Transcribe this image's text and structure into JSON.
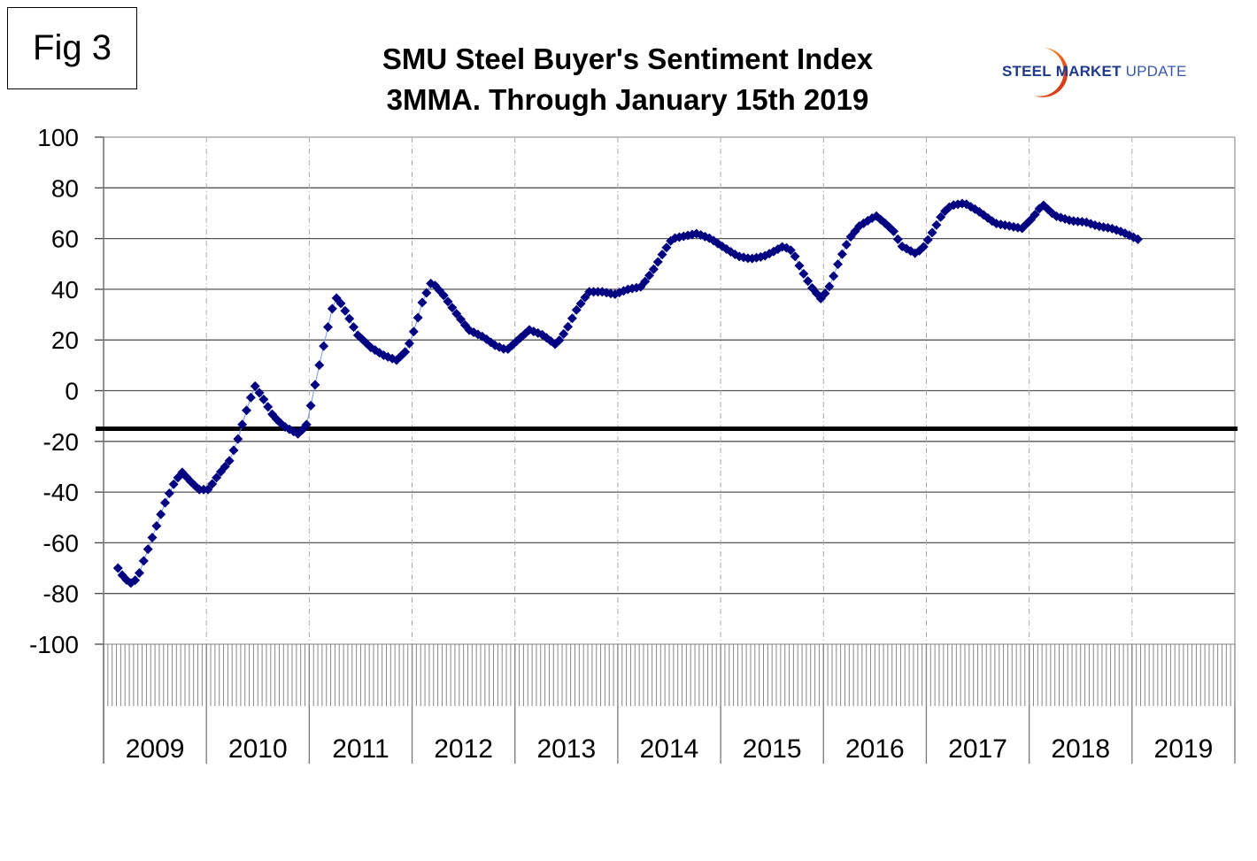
{
  "figure_label": "Fig 3",
  "logo": {
    "word1": "STEEL",
    "word2": "MARKET",
    "word3": "UPDATE"
  },
  "chart_data": {
    "type": "scatter",
    "title": "SMU Steel Buyer's Sentiment Index",
    "subtitle": "3MMA. Through January 15th 2019",
    "xlabel": "",
    "ylabel": "",
    "ylim": [
      -100,
      100
    ],
    "xlim": [
      2009,
      2020
    ],
    "yticks": [
      100,
      80,
      60,
      40,
      20,
      0,
      -20,
      -40,
      -60,
      -80,
      -100
    ],
    "categories": [
      "2009",
      "2010",
      "2011",
      "2012",
      "2013",
      "2014",
      "2015",
      "2016",
      "2017",
      "2018",
      "2019"
    ],
    "grid": true,
    "legend": "none",
    "reference_line": {
      "value": -15,
      "color": "#000000"
    },
    "series": [
      {
        "name": "Buyer's Sentiment Index 3MMA",
        "marker": "diamond",
        "color": "#000080",
        "line_color": "#6f9cf0",
        "sampling_per_year": 24,
        "anchors": [
          [
            2009.14,
            -70
          ],
          [
            2009.2,
            -74
          ],
          [
            2009.27,
            -76
          ],
          [
            2009.33,
            -74
          ],
          [
            2009.4,
            -66
          ],
          [
            2009.5,
            -55
          ],
          [
            2009.6,
            -44
          ],
          [
            2009.68,
            -37
          ],
          [
            2009.76,
            -32
          ],
          [
            2009.85,
            -36
          ],
          [
            2009.93,
            -39
          ],
          [
            2010.02,
            -39
          ],
          [
            2010.12,
            -33
          ],
          [
            2010.22,
            -28
          ],
          [
            2010.3,
            -20
          ],
          [
            2010.38,
            -9
          ],
          [
            2010.47,
            2
          ],
          [
            2010.55,
            -3
          ],
          [
            2010.65,
            -10
          ],
          [
            2010.75,
            -14
          ],
          [
            2010.89,
            -17
          ],
          [
            2010.97,
            -14
          ],
          [
            2011.02,
            -5
          ],
          [
            2011.07,
            5
          ],
          [
            2011.12,
            14
          ],
          [
            2011.17,
            23
          ],
          [
            2011.22,
            32
          ],
          [
            2011.27,
            37
          ],
          [
            2011.37,
            30
          ],
          [
            2011.47,
            22
          ],
          [
            2011.6,
            17
          ],
          [
            2011.72,
            14
          ],
          [
            2011.85,
            12
          ],
          [
            2011.95,
            16
          ],
          [
            2012.03,
            25
          ],
          [
            2012.1,
            35
          ],
          [
            2012.19,
            43
          ],
          [
            2012.3,
            38
          ],
          [
            2012.42,
            31
          ],
          [
            2012.55,
            24
          ],
          [
            2012.7,
            21
          ],
          [
            2012.8,
            18
          ],
          [
            2012.92,
            16
          ],
          [
            2013.03,
            20
          ],
          [
            2013.14,
            24
          ],
          [
            2013.27,
            22
          ],
          [
            2013.4,
            18
          ],
          [
            2013.5,
            24
          ],
          [
            2013.6,
            32
          ],
          [
            2013.72,
            39
          ],
          [
            2013.85,
            39
          ],
          [
            2013.97,
            38
          ],
          [
            2014.1,
            40
          ],
          [
            2014.23,
            41
          ],
          [
            2014.35,
            48
          ],
          [
            2014.45,
            55
          ],
          [
            2014.53,
            60
          ],
          [
            2014.65,
            61
          ],
          [
            2014.77,
            62
          ],
          [
            2014.9,
            60
          ],
          [
            2015.05,
            56
          ],
          [
            2015.17,
            53
          ],
          [
            2015.29,
            52
          ],
          [
            2015.42,
            53
          ],
          [
            2015.52,
            55
          ],
          [
            2015.61,
            57
          ],
          [
            2015.7,
            55
          ],
          [
            2015.78,
            48
          ],
          [
            2015.88,
            41
          ],
          [
            2015.98,
            36
          ],
          [
            2016.07,
            42
          ],
          [
            2016.15,
            51
          ],
          [
            2016.25,
            60
          ],
          [
            2016.35,
            65
          ],
          [
            2016.51,
            69
          ],
          [
            2016.6,
            66
          ],
          [
            2016.68,
            63
          ],
          [
            2016.76,
            57
          ],
          [
            2016.9,
            54
          ],
          [
            2016.98,
            57
          ],
          [
            2017.08,
            64
          ],
          [
            2017.16,
            70
          ],
          [
            2017.24,
            73
          ],
          [
            2017.37,
            74
          ],
          [
            2017.5,
            71
          ],
          [
            2017.67,
            66
          ],
          [
            2017.8,
            65
          ],
          [
            2017.93,
            64
          ],
          [
            2018.03,
            68
          ],
          [
            2018.13,
            73.5
          ],
          [
            2018.25,
            69
          ],
          [
            2018.41,
            67
          ],
          [
            2018.55,
            66.5
          ],
          [
            2018.66,
            65
          ],
          [
            2018.8,
            64
          ],
          [
            2018.91,
            62.5
          ],
          [
            2019.07,
            59.5
          ]
        ]
      }
    ]
  }
}
